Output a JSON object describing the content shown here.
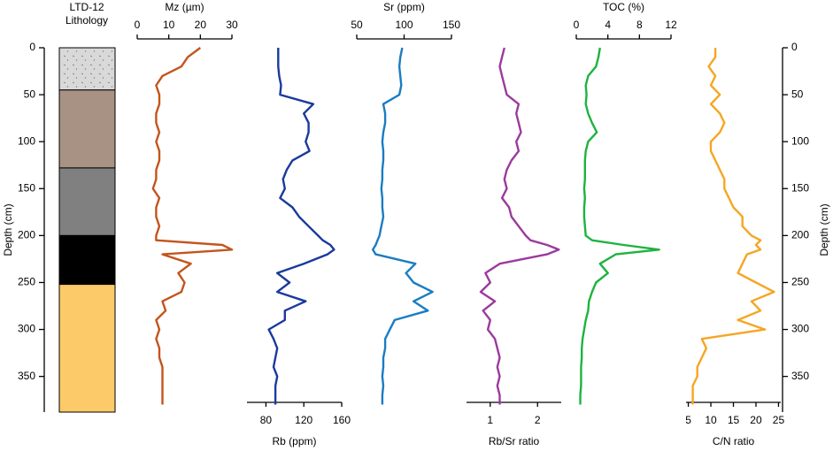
{
  "chart_data": {
    "type": "depth-profile",
    "lithology_title": [
      "LTD-12",
      "Lithology"
    ],
    "ylabel": "Depth (cm)",
    "ylim": [
      0,
      388
    ],
    "yticks": [
      0,
      50,
      100,
      150,
      200,
      250,
      300,
      350
    ],
    "layers": [
      {
        "top": 0,
        "bottom": 45,
        "color": "#d9d9d9",
        "pattern": "dots"
      },
      {
        "top": 45,
        "bottom": 128,
        "color": "#a89283"
      },
      {
        "top": 128,
        "bottom": 200,
        "color": "#808080"
      },
      {
        "top": 200,
        "bottom": 252,
        "color": "#000000"
      },
      {
        "top": 252,
        "bottom": 388,
        "color": "#fdca69"
      }
    ],
    "depth": [
      0,
      10,
      20,
      30,
      40,
      50,
      60,
      70,
      80,
      90,
      100,
      110,
      120,
      130,
      140,
      150,
      160,
      170,
      180,
      190,
      200,
      205,
      210,
      215,
      220,
      230,
      240,
      250,
      260,
      270,
      280,
      290,
      300,
      310,
      320,
      330,
      340,
      350,
      360,
      370,
      380
    ],
    "series": [
      {
        "name": "Mz (µm)",
        "color": "#c4541c",
        "axis": "top",
        "xlim": [
          0,
          30
        ],
        "xticks": [
          0,
          10,
          20,
          30
        ],
        "values": [
          20,
          16,
          14,
          8,
          6,
          7,
          7,
          6,
          6,
          7,
          6,
          7,
          7,
          6,
          6,
          5,
          7,
          6,
          6,
          7,
          6,
          6,
          27,
          30,
          8,
          17,
          13,
          15,
          14,
          8,
          9,
          6,
          7,
          6,
          7,
          7,
          8,
          8,
          8,
          8,
          8
        ]
      },
      {
        "name": "Rb (ppm)",
        "color": "#1a3a9c",
        "axis": "bottom",
        "xlim": [
          60,
          160
        ],
        "xticks": [
          80,
          120,
          160
        ],
        "values": [
          93,
          93,
          93,
          94,
          96,
          95,
          130,
          120,
          125,
          125,
          122,
          126,
          108,
          102,
          98,
          100,
          95,
          108,
          115,
          125,
          135,
          140,
          148,
          152,
          145,
          120,
          92,
          105,
          92,
          122,
          100,
          100,
          83,
          88,
          92,
          90,
          88,
          92,
          90,
          90,
          90
        ]
      },
      {
        "name": "Sr (ppm)",
        "color": "#1a7cc2",
        "axis": "top",
        "xlim": [
          50,
          150
        ],
        "xticks": [
          50,
          100,
          150
        ],
        "values": [
          98,
          96,
          95,
          96,
          97,
          95,
          78,
          80,
          80,
          78,
          77,
          78,
          78,
          77,
          77,
          76,
          77,
          77,
          78,
          76,
          74,
          72,
          70,
          67,
          70,
          112,
          102,
          110,
          130,
          110,
          125,
          90,
          85,
          80,
          80,
          78,
          78,
          77,
          78,
          77,
          77
        ]
      },
      {
        "name": "Rb/Sr ratio",
        "color": "#9b3a9e",
        "axis": "bottom",
        "xlim": [
          0.5,
          2.5
        ],
        "xticks": [
          1,
          2
        ],
        "values": [
          1.3,
          1.25,
          1.2,
          1.25,
          1.3,
          1.35,
          1.6,
          1.55,
          1.6,
          1.65,
          1.55,
          1.6,
          1.45,
          1.35,
          1.3,
          1.35,
          1.25,
          1.4,
          1.45,
          1.6,
          1.75,
          1.85,
          2.2,
          2.45,
          2.2,
          1.2,
          0.9,
          1.0,
          0.8,
          1.1,
          0.85,
          1.0,
          0.95,
          1.1,
          1.15,
          1.2,
          1.15,
          1.2,
          1.15,
          1.2,
          1.2
        ]
      },
      {
        "name": "TOC (%)",
        "color": "#1eb33e",
        "axis": "top",
        "xlim": [
          0,
          12
        ],
        "xticks": [
          0,
          4,
          8,
          12
        ],
        "values": [
          3,
          2.8,
          2.5,
          1.5,
          1.2,
          1.3,
          1.2,
          1.5,
          2,
          2.6,
          1.5,
          1.2,
          1.1,
          1.1,
          1.1,
          1.0,
          1.1,
          1.0,
          1.0,
          1.1,
          1.2,
          2,
          6,
          10.5,
          5,
          3,
          4,
          2.5,
          2.0,
          1.6,
          1.5,
          1.2,
          1.0,
          0.8,
          0.7,
          0.7,
          0.6,
          0.6,
          0.6,
          0.5,
          0.5
        ]
      },
      {
        "name": "C/N ratio",
        "color": "#f5a623",
        "axis": "bottom",
        "xlim": [
          4.5,
          25.5
        ],
        "xticks": [
          5,
          10,
          15,
          20,
          25
        ],
        "values": [
          11,
          11,
          9.5,
          11,
          10,
          12,
          10,
          12,
          13,
          12,
          10,
          10,
          11,
          12,
          13,
          13,
          14,
          15,
          17,
          17,
          19,
          21,
          20,
          21,
          18,
          17,
          16,
          20,
          24,
          19,
          21,
          16,
          22,
          8,
          9,
          8,
          7,
          7,
          6,
          6,
          6
        ]
      }
    ]
  }
}
